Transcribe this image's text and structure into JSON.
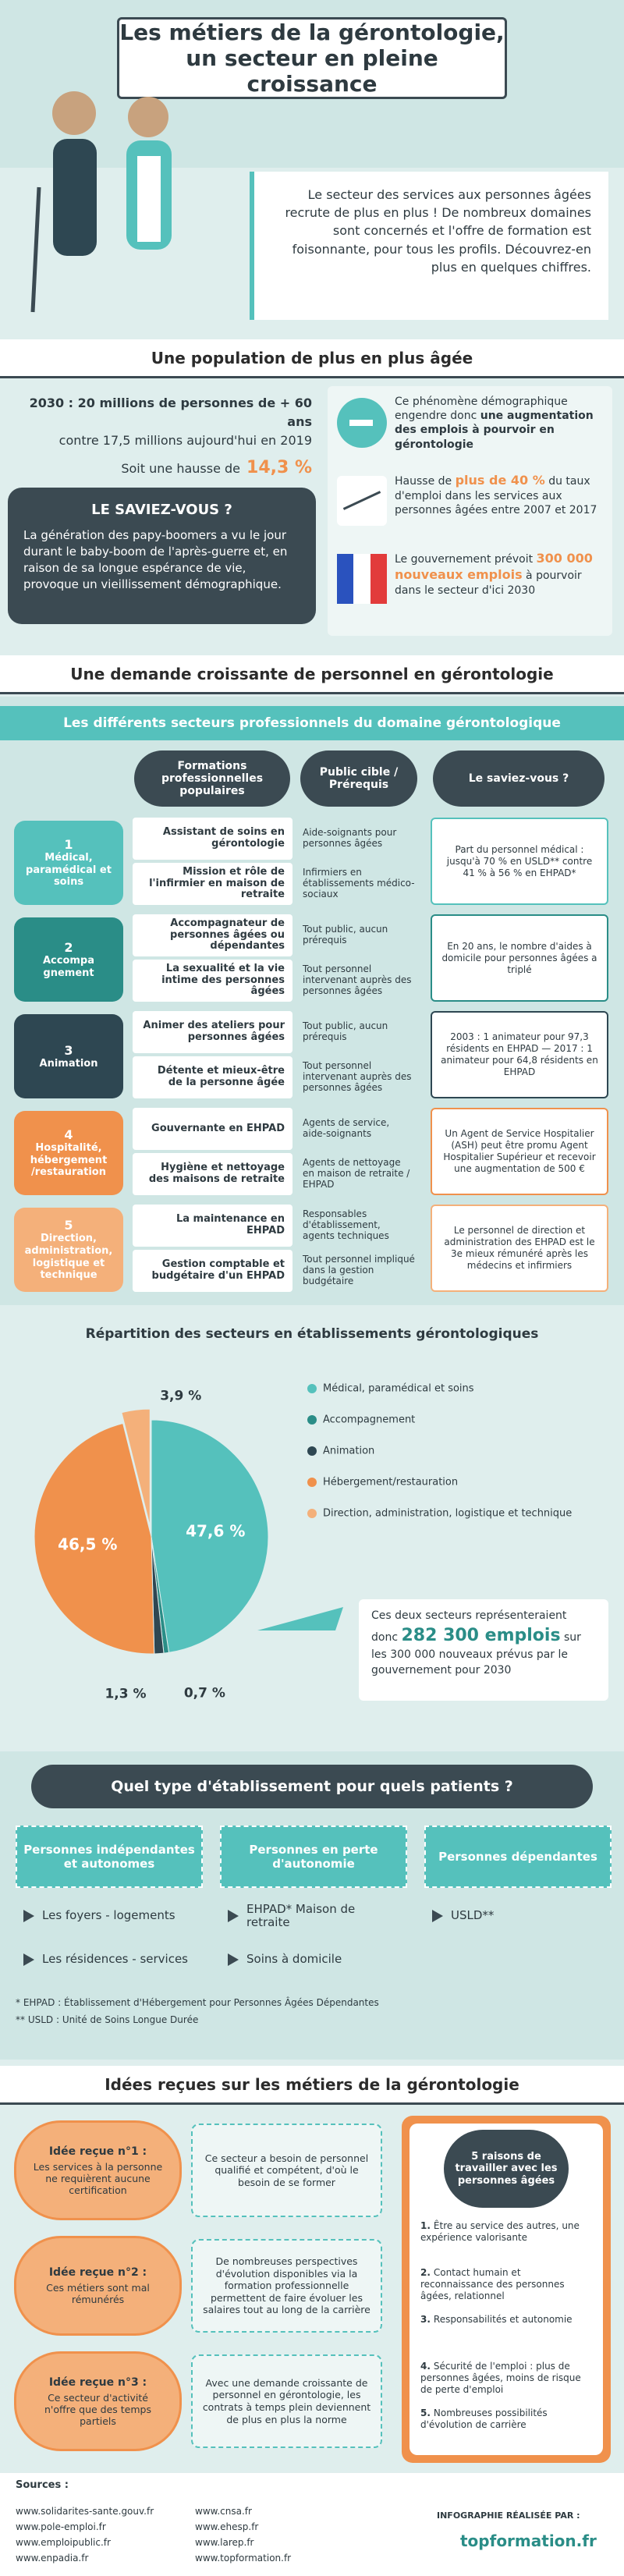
{
  "header": {
    "title_line1": "Les métiers de la gérontologie,",
    "title_line2": "un secteur en pleine croissance",
    "intro": "Le secteur des services aux personnes âgées recrute de plus en plus ! De nombreux domaines sont concernés et l'offre de formation est foisonnante, pour tous les profils. Découvrez-en plus en quelques chiffres."
  },
  "population": {
    "title": "Une population de plus en plus âgée",
    "stat_line1": "2030 : 20 millions de personnes de + 60 ans",
    "stat_line2": "contre 17,5 millions aujourd'hui en 2019",
    "rise_text": "Soit une hausse de",
    "rise_value": "14,3 %",
    "did_you_know": "LE SAVIEZ-VOUS ?",
    "did_you_know_text": "La génération des papy-boomers a vu le jour durant le baby-boom de l'après-guerre et, en raison de sa longue espérance de vie, provoque un vieillissement démographique.",
    "facts": [
      {
        "text": "Ce phénomène démographique engendre donc",
        "highlight": "une augmentation des emplois à pourvoir en gérontologie"
      },
      {
        "text": "Hausse de",
        "highlight": "plus de 40 %",
        "text2": "du taux d'emploi dans les services aux personnes âgées entre 2007 et 2017"
      },
      {
        "text": "Le gouvernement prévoit",
        "highlight": "300 000 nouveaux emplois",
        "text2": "à pourvoir dans le secteur d'ici 2030"
      }
    ]
  },
  "demand": {
    "title": "Une demande croissante de personnel en gérontologie",
    "subtitle": "Les différents secteurs professionnels du domaine gérontologique",
    "headers": [
      "Formations professionnelles populaires",
      "Public cible / Prérequis",
      "Le saviez-vous ?"
    ],
    "sectors": [
      {
        "num": "1",
        "label": "Médical, paramédical et soins",
        "color": "#55c1bc",
        "rows": [
          [
            "Assistant de soins en gérontologie",
            "Aide-soignants pour personnes âgées"
          ],
          [
            "Mission et rôle de l'infirmier en maison de retraite",
            "Infirmiers en établissements médico-sociaux"
          ]
        ],
        "fact": "Part du personnel médical : jusqu'à 70 % en USLD** contre 41 % à 56 % en EHPAD*"
      },
      {
        "num": "2",
        "label": "Accompa gnement",
        "color": "#2a8d87",
        "rows": [
          [
            "Accompagnateur de personnes âgées ou dépendantes",
            "Tout public, aucun prérequis"
          ],
          [
            "La sexualité et la vie intime des personnes âgées",
            "Tout personnel intervenant auprès des personnes âgées"
          ]
        ],
        "fact": "En 20 ans, le nombre d'aides à domicile pour personnes âgées a triplé"
      },
      {
        "num": "3",
        "label": "Animation",
        "color": "#2e4752",
        "rows": [
          [
            "Animer des ateliers pour personnes âgées",
            "Tout public, aucun prérequis"
          ],
          [
            "Détente et mieux-être de la personne âgée",
            "Tout personnel intervenant auprès des personnes âgées"
          ]
        ],
        "fact": "2003 : 1 animateur pour 97,3 résidents en EHPAD — 2017 : 1 animateur pour 64,8 résidents en EHPAD"
      },
      {
        "num": "4",
        "label": "Hospitalité, hébergement /restauration",
        "color": "#f0914c",
        "rows": [
          [
            "Gouvernante en EHPAD",
            "Agents de service, aide-soignants"
          ],
          [
            "Hygiène et nettoyage des maisons de retraite",
            "Agents de nettoyage en maison de retraite / EHPAD"
          ]
        ],
        "fact": "Un Agent de Service Hospitalier (ASH) peut être promu Agent Hospitalier Supérieur et recevoir une augmentation de 500 €"
      },
      {
        "num": "5",
        "label": "Direction, administration, logistique et technique",
        "color": "#f4b07a",
        "rows": [
          [
            "La maintenance en EHPAD",
            "Responsables d'établissement, agents techniques"
          ],
          [
            "Gestion comptable et budgétaire d'un EHPAD",
            "Tout personnel impliqué dans la gestion budgétaire"
          ]
        ],
        "fact": "Le personnel de direction et administration des EHPAD est le 3e mieux rémunéré après les médecins et infirmiers"
      }
    ]
  },
  "chart_data": {
    "type": "pie",
    "title": "Répartition des secteurs en établissements gérontologiques",
    "categories": [
      "Médical, paramédical et soins",
      "Accompagnement",
      "Animation",
      "Hébergement/restauration",
      "Direction, administration, logistique et technique"
    ],
    "values": [
      47.6,
      0.7,
      1.3,
      46.5,
      3.9
    ],
    "value_labels": [
      "47,6 %",
      "0,7 %",
      "1,3 %",
      "46,5 %",
      "3,9 %"
    ],
    "colors": [
      "#55c1bc",
      "#2a8d87",
      "#2e4752",
      "#f0914c",
      "#f4b07a"
    ],
    "exploded": [
      4
    ],
    "annotation": {
      "text1": "Ces deux secteurs représenteraient donc",
      "highlight": "282 300 emplois",
      "text2": "sur les 300 000 nouveaux prévus par le gouvernement pour 2030"
    }
  },
  "establishments": {
    "title": "Quel type d'établissement pour quels patients ?",
    "columns": [
      {
        "header": "Personnes indépendantes et autonomes",
        "items": [
          "Les foyers - logements",
          "Les résidences - services"
        ]
      },
      {
        "header": "Personnes en perte d'autonomie",
        "items": [
          "EHPAD* Maison de retraite",
          "Soins à domicile"
        ]
      },
      {
        "header": "Personnes dépendantes",
        "items": [
          "USLD**"
        ]
      }
    ],
    "notes": [
      "* EHPAD : Établissement d'Hébergement pour Personnes Âgées Dépendantes",
      "** USLD : Unité de Soins Longue Durée"
    ]
  },
  "myths": {
    "title": "Idées reçues sur les métiers de la gérontologie",
    "items": [
      {
        "label": "Idée reçue n°1 :",
        "myth": "Les services à la personne ne requièrent aucune certification",
        "answer": "Ce secteur a besoin de personnel qualifié et compétent, d'où le besoin de se former"
      },
      {
        "label": "Idée reçue n°2 :",
        "myth": "Ces métiers sont mal rémunérés",
        "answer": "De nombreuses perspectives d'évolution disponibles via la formation professionnelle permettent de faire évoluer les salaires tout au long de la carrière"
      },
      {
        "label": "Idée reçue n°3 :",
        "myth": "Ce secteur d'activité n'offre que des temps partiels",
        "answer": "Avec une demande croissante de personnel en gérontologie, les contrats à temps plein deviennent de plus en plus la norme"
      }
    ],
    "reasons_title": "5 raisons de travailler avec les personnes âgées",
    "reasons": [
      {
        "num": "1.",
        "text": "Être au service des autres, une expérience valorisante"
      },
      {
        "num": "2.",
        "text": "Contact humain et reconnaissance des personnes âgées, relationnel"
      },
      {
        "num": "3.",
        "text": "Responsabilités et autonomie"
      },
      {
        "num": "4.",
        "text": "Sécurité de l'emploi : plus de personnes âgées, moins de risque de perte d'emploi"
      },
      {
        "num": "5.",
        "text": "Nombreuses possibilités d'évolution de carrière"
      }
    ]
  },
  "sources": {
    "label": "Sources :",
    "links": [
      "www.solidarites-sante.gouv.fr",
      "www.pole-emploi.fr",
      "www.emploipublic.fr",
      "www.enpadia.fr",
      "www.cnsa.fr",
      "www.ehesp.fr",
      "www.larep.fr",
      "www.topformation.fr"
    ],
    "credit": "INFOGRAPHIE RÉALISÉE PAR :",
    "brand": "topformation.fr"
  }
}
